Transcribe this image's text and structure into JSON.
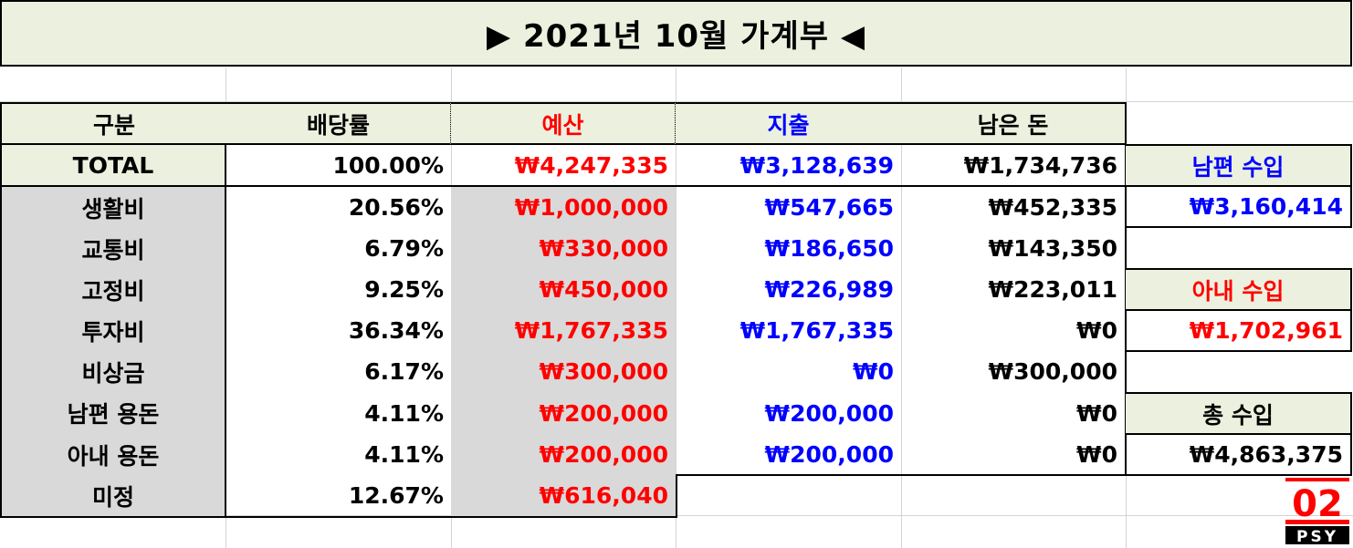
{
  "title": "▶ 2021년 10월 가계부 ◀",
  "headers": {
    "category": "구분",
    "ratio": "배당률",
    "budget": "예산",
    "expense": "지출",
    "remaining": "남은 돈"
  },
  "total": {
    "label": "TOTAL",
    "ratio": "100.00%",
    "budget": "₩4,247,335",
    "expense": "₩3,128,639",
    "remaining": "₩1,734,736"
  },
  "rows": [
    {
      "label": "생활비",
      "ratio": "20.56%",
      "budget": "₩1,000,000",
      "expense": "₩547,665",
      "remaining": "₩452,335"
    },
    {
      "label": "교통비",
      "ratio": "6.79%",
      "budget": "₩330,000",
      "expense": "₩186,650",
      "remaining": "₩143,350"
    },
    {
      "label": "고정비",
      "ratio": "9.25%",
      "budget": "₩450,000",
      "expense": "₩226,989",
      "remaining": "₩223,011"
    },
    {
      "label": "투자비",
      "ratio": "36.34%",
      "budget": "₩1,767,335",
      "expense": "₩1,767,335",
      "remaining": "₩0"
    },
    {
      "label": "비상금",
      "ratio": "6.17%",
      "budget": "₩300,000",
      "expense": "₩0",
      "remaining": "₩300,000"
    },
    {
      "label": "남편 용돈",
      "ratio": "4.11%",
      "budget": "₩200,000",
      "expense": "₩200,000",
      "remaining": "₩0"
    },
    {
      "label": "아내 용돈",
      "ratio": "4.11%",
      "budget": "₩200,000",
      "expense": "₩200,000",
      "remaining": "₩0"
    },
    {
      "label": "미정",
      "ratio": "12.67%",
      "budget": "₩616,040"
    }
  ],
  "income": {
    "husband_label": "남편 수입",
    "husband_value": "₩3,160,414",
    "wife_label": "아내 수입",
    "wife_value": "₩1,702,961",
    "total_label": "총 수입",
    "total_value": "₩4,863,375"
  },
  "logo": {
    "top_text": "02",
    "bottom_text": "PSY",
    "colors": {
      "red": "#ff0000",
      "black": "#000000"
    }
  },
  "colors": {
    "header_bg": "#ebf1de",
    "category_bg": "#d9d9d9",
    "budget_text": "#ff0000",
    "expense_text": "#0000ff"
  }
}
